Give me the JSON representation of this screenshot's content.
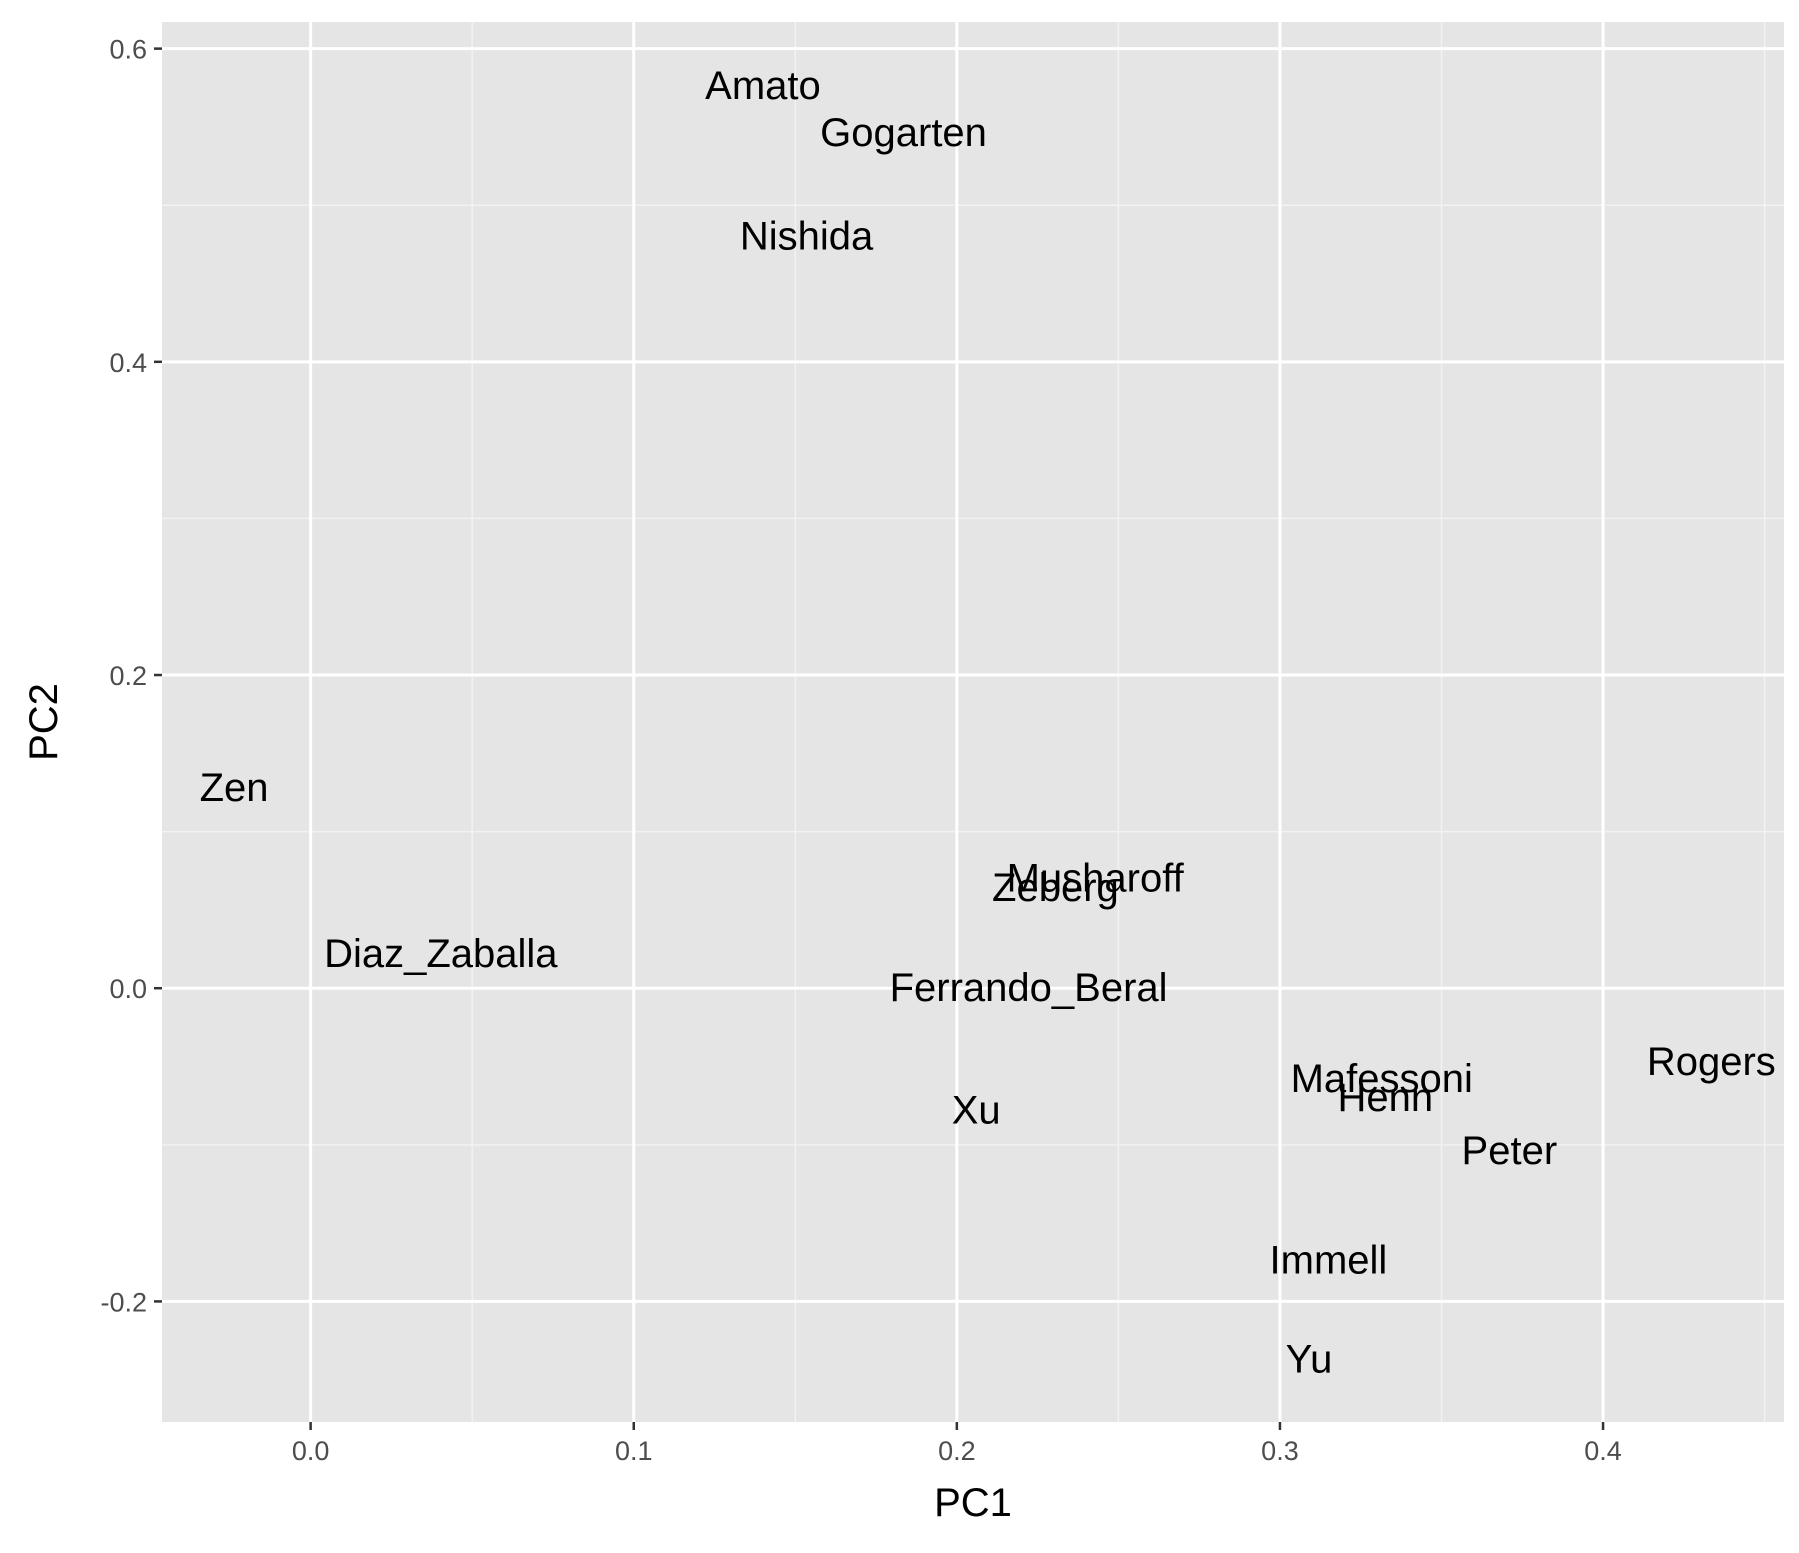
{
  "chart_data": {
    "type": "scatter",
    "title": "",
    "xlabel": "PC1",
    "ylabel": "PC2",
    "xlim": [
      -0.046,
      0.456
    ],
    "ylim": [
      -0.277,
      0.617
    ],
    "x_ticks": [
      0.0,
      0.1,
      0.2,
      0.3,
      0.4
    ],
    "x_tick_labels": [
      "0.0",
      "0.1",
      "0.2",
      "0.3",
      "0.4"
    ],
    "y_ticks": [
      -0.2,
      0.0,
      0.2,
      0.4,
      0.6
    ],
    "y_tick_labels": [
      "-0.2",
      "0.0",
      "0.2",
      "0.4",
      "0.6"
    ],
    "grid": true,
    "points": [
      {
        "label": "Amato",
        "x": 0.14,
        "y": 0.576
      },
      {
        "label": "Gogarten",
        "x": 0.1835,
        "y": 0.546
      },
      {
        "label": "Nishida",
        "x": 0.1535,
        "y": 0.48
      },
      {
        "label": "Zen",
        "x": -0.0237,
        "y": 0.128
      },
      {
        "label": "Musharoff",
        "x": 0.2428,
        "y": 0.07
      },
      {
        "label": "Zeberg",
        "x": 0.2305,
        "y": 0.064
      },
      {
        "label": "Diaz_Zaballa",
        "x": 0.0403,
        "y": 0.022
      },
      {
        "label": "Ferrando_Beral",
        "x": 0.2222,
        "y": 0.0
      },
      {
        "label": "Rogers",
        "x": 0.4335,
        "y": -0.047
      },
      {
        "label": "Mafessoni",
        "x": 0.3315,
        "y": -0.058
      },
      {
        "label": "Henn",
        "x": 0.3326,
        "y": -0.07
      },
      {
        "label": "Xu",
        "x": 0.206,
        "y": -0.078
      },
      {
        "label": "Peter",
        "x": 0.371,
        "y": -0.104
      },
      {
        "label": "Immell",
        "x": 0.315,
        "y": -0.174
      },
      {
        "label": "Yu",
        "x": 0.309,
        "y": -0.237
      }
    ]
  }
}
